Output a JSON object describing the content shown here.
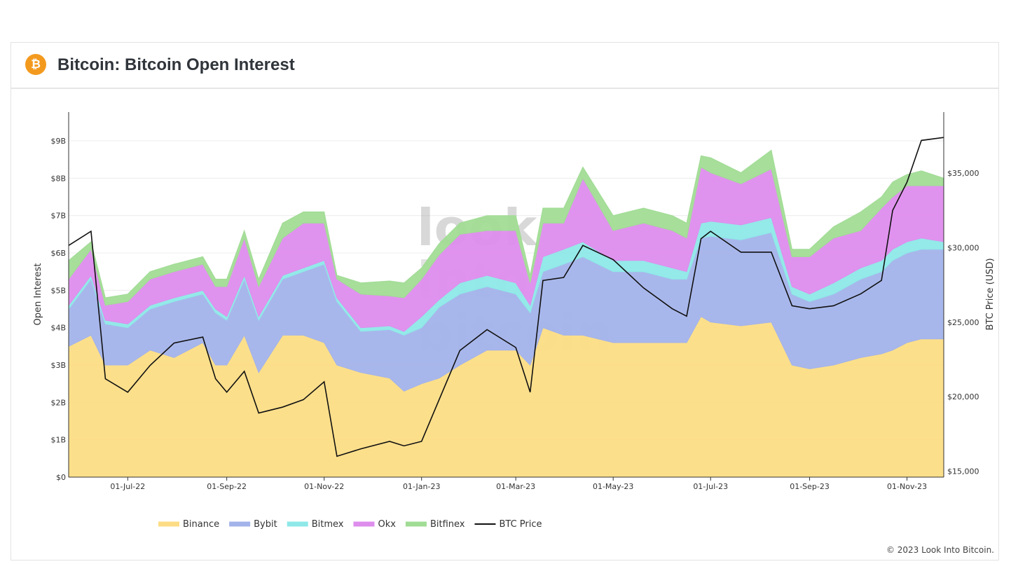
{
  "header": {
    "title": "Bitcoin: Bitcoin Open Interest",
    "icon": "bitcoin-icon"
  },
  "watermark": [
    "look",
    "into",
    "bitcoin"
  ],
  "footer": "© 2023 Look Into Bitcoin.",
  "chart_data": {
    "type": "area",
    "stacked": true,
    "title": "",
    "ylabel": "Open Interest",
    "y2label": "BTC Price (USD)",
    "ylim": [
      0,
      9.77
    ],
    "y2lim": [
      14600,
      39100
    ],
    "yticks": [
      "$0",
      "$1B",
      "$2B",
      "$3B",
      "$4B",
      "$5B",
      "$6B",
      "$7B",
      "$8B",
      "$9B"
    ],
    "y2ticks": [
      "$15,000",
      "$20,000",
      "$25,000",
      "$30,000",
      "$35,000"
    ],
    "y2tick_values": [
      15000,
      20000,
      25000,
      30000,
      35000
    ],
    "xlim": [
      "2022-05-25",
      "2023-11-24"
    ],
    "xticks": [
      "01-Jul-22",
      "01-Sep-22",
      "01-Nov-22",
      "01-Jan-23",
      "01-Mar-23",
      "01-May-23",
      "01-Jul-23",
      "01-Sep-23",
      "01-Nov-23"
    ],
    "xtick_dates": [
      "2022-07-01",
      "2022-09-01",
      "2022-11-01",
      "2023-01-01",
      "2023-03-01",
      "2023-05-01",
      "2023-07-01",
      "2023-09-01",
      "2023-11-01"
    ],
    "grid": true,
    "legend": "bottom",
    "units": "USD billions",
    "x": [
      "2022-05-25",
      "2022-06-08",
      "2022-06-17",
      "2022-07-01",
      "2022-07-15",
      "2022-07-30",
      "2022-08-17",
      "2022-08-25",
      "2022-09-01",
      "2022-09-12",
      "2022-09-21",
      "2022-10-06",
      "2022-10-19",
      "2022-11-01",
      "2022-11-09",
      "2022-11-24",
      "2022-12-12",
      "2022-12-21",
      "2023-01-01",
      "2023-01-12",
      "2023-01-25",
      "2023-02-11",
      "2023-03-01",
      "2023-03-10",
      "2023-03-18",
      "2023-03-31",
      "2023-04-12",
      "2023-05-01",
      "2023-05-20",
      "2023-06-07",
      "2023-06-16",
      "2023-06-25",
      "2023-07-01",
      "2023-07-20",
      "2023-08-08",
      "2023-08-21",
      "2023-09-01",
      "2023-09-16",
      "2023-10-03",
      "2023-10-16",
      "2023-10-23",
      "2023-11-01",
      "2023-11-10",
      "2023-11-24"
    ],
    "series": [
      {
        "name": "Binance",
        "color": "#fcdd85",
        "values": [
          3.5,
          3.8,
          3.0,
          3.0,
          3.4,
          3.2,
          3.6,
          3.0,
          3.0,
          3.8,
          2.8,
          3.8,
          3.8,
          3.6,
          3.0,
          2.8,
          2.65,
          2.3,
          2.5,
          2.65,
          3.0,
          3.4,
          3.4,
          3.0,
          4.0,
          3.8,
          3.8,
          3.6,
          3.6,
          3.6,
          3.6,
          4.3,
          4.15,
          4.05,
          4.15,
          3.0,
          2.9,
          3.0,
          3.2,
          3.3,
          3.4,
          3.6,
          3.7,
          3.7
        ]
      },
      {
        "name": "Bybit",
        "color": "#a3b3ea",
        "values": [
          1.0,
          1.5,
          1.1,
          1.0,
          1.1,
          1.5,
          1.3,
          1.4,
          1.2,
          1.5,
          1.4,
          1.5,
          1.7,
          2.1,
          1.7,
          1.1,
          1.3,
          1.5,
          1.5,
          1.9,
          1.9,
          1.7,
          1.5,
          1.4,
          1.5,
          1.9,
          2.1,
          1.9,
          1.9,
          1.7,
          1.7,
          2.1,
          2.3,
          2.3,
          2.4,
          1.9,
          1.8,
          1.9,
          2.1,
          2.2,
          2.4,
          2.4,
          2.4,
          2.4
        ]
      },
      {
        "name": "Bitmex",
        "color": "#8ee8e8",
        "values": [
          0.1,
          0.1,
          0.1,
          0.1,
          0.1,
          0.1,
          0.1,
          0.1,
          0.1,
          0.1,
          0.1,
          0.1,
          0.1,
          0.1,
          0.1,
          0.1,
          0.1,
          0.1,
          0.3,
          0.2,
          0.3,
          0.3,
          0.3,
          0.2,
          0.4,
          0.4,
          0.4,
          0.3,
          0.3,
          0.3,
          0.2,
          0.4,
          0.4,
          0.4,
          0.4,
          0.2,
          0.2,
          0.3,
          0.3,
          0.3,
          0.3,
          0.3,
          0.3,
          0.2
        ]
      },
      {
        "name": "Okx",
        "color": "#de8ded",
        "values": [
          0.7,
          0.7,
          0.4,
          0.6,
          0.7,
          0.7,
          0.7,
          0.6,
          0.8,
          1.0,
          0.8,
          1.0,
          1.2,
          1.0,
          0.5,
          0.9,
          0.8,
          0.9,
          1.0,
          1.2,
          1.3,
          1.2,
          1.4,
          0.6,
          0.9,
          0.7,
          1.7,
          0.8,
          1.0,
          1.0,
          0.9,
          1.5,
          1.3,
          1.1,
          1.3,
          0.8,
          1.0,
          1.2,
          1.0,
          1.4,
          1.4,
          1.5,
          1.4,
          1.5
        ]
      },
      {
        "name": "Bitfinex",
        "color": "#a1dc95",
        "values": [
          0.5,
          0.2,
          0.2,
          0.2,
          0.2,
          0.2,
          0.2,
          0.2,
          0.2,
          0.2,
          0.2,
          0.4,
          0.3,
          0.3,
          0.1,
          0.3,
          0.4,
          0.4,
          0.3,
          0.3,
          0.3,
          0.4,
          0.4,
          0.2,
          0.4,
          0.4,
          0.3,
          0.4,
          0.4,
          0.4,
          0.4,
          0.3,
          0.4,
          0.3,
          0.5,
          0.2,
          0.2,
          0.3,
          0.5,
          0.3,
          0.4,
          0.3,
          0.4,
          0.2
        ]
      }
    ],
    "line": {
      "name": "BTC Price",
      "color": "#111111",
      "axis": "right",
      "values": [
        30150,
        31100,
        21200,
        20300,
        22100,
        23600,
        24000,
        21200,
        20300,
        21700,
        18900,
        19300,
        19800,
        21000,
        16000,
        16500,
        17000,
        16700,
        17000,
        19800,
        23100,
        24500,
        23300,
        20300,
        27800,
        28000,
        30150,
        29200,
        27300,
        25900,
        25400,
        30600,
        31100,
        29700,
        29700,
        26100,
        25900,
        26100,
        26900,
        27800,
        32500,
        34400,
        37200,
        37400
      ]
    }
  }
}
